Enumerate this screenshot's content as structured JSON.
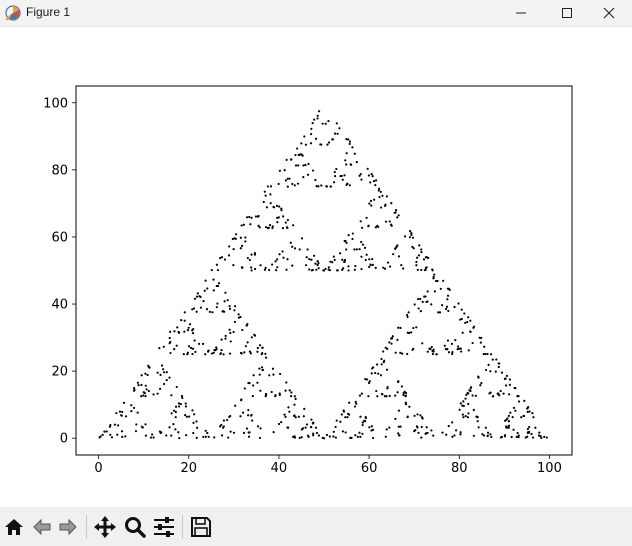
{
  "window": {
    "title": "Figure 1",
    "app_icon": "matplotlib-figure-icon",
    "controls": [
      "minimize-icon",
      "maximize-icon",
      "close-icon"
    ]
  },
  "toolbar": {
    "buttons": [
      {
        "name": "home",
        "icon": "home-icon"
      },
      {
        "name": "back",
        "icon": "back-arrow-icon"
      },
      {
        "name": "forward",
        "icon": "forward-arrow-icon"
      },
      {
        "name": "pan",
        "icon": "move-arrows-icon"
      },
      {
        "name": "zoom",
        "icon": "magnifier-icon"
      },
      {
        "name": "configure-subplots",
        "icon": "sliders-icon"
      },
      {
        "name": "save",
        "icon": "floppy-disk-icon"
      }
    ]
  },
  "chart_data": {
    "type": "scatter",
    "title": "",
    "xlabel": "",
    "ylabel": "",
    "xlim": [
      -5,
      105
    ],
    "ylim": [
      -5,
      105
    ],
    "x_ticks": [
      0,
      20,
      40,
      60,
      80,
      100
    ],
    "y_ticks": [
      0,
      20,
      40,
      60,
      80,
      100
    ],
    "x_tick_labels": [
      "0",
      "20",
      "40",
      "60",
      "80",
      "100"
    ],
    "y_tick_labels": [
      "0",
      "20",
      "40",
      "60",
      "80",
      "100"
    ],
    "grid": false,
    "legend": "none",
    "marker_color": "#000000",
    "vertices": [
      [
        0,
        0
      ],
      [
        100,
        0
      ],
      [
        50,
        100
      ]
    ],
    "point_count": 1000,
    "description_of_points": "chaos-game points forming a Sierpinski triangle"
  }
}
